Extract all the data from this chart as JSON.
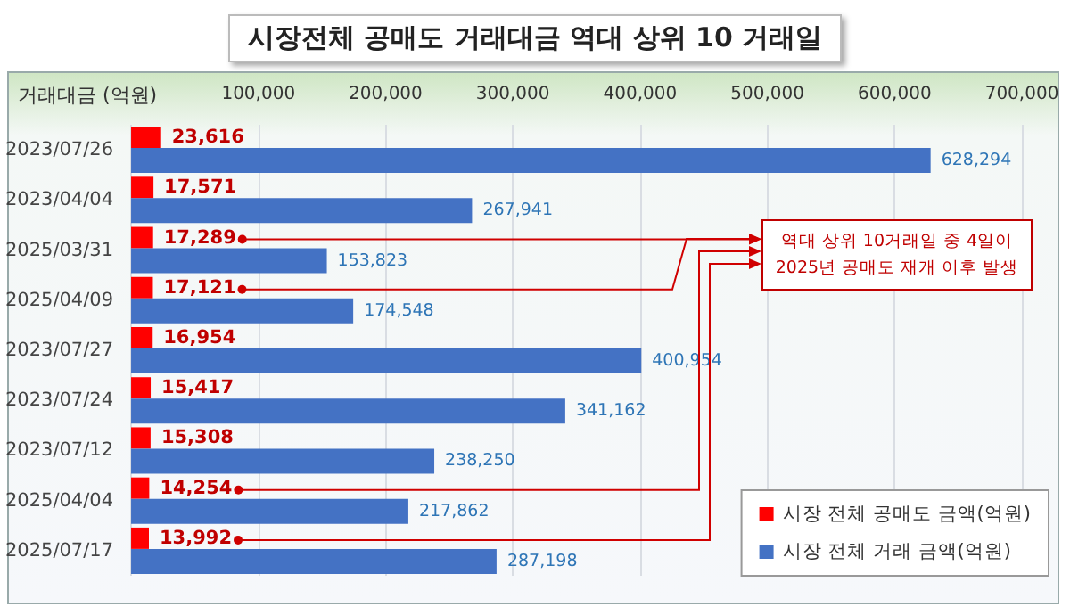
{
  "chart_data": {
    "type": "bar",
    "orientation": "horizontal",
    "title": "시장전체 공매도 거래대금 역대 상위 10 거래일",
    "xlabel": "거래대금 (억원)",
    "categories": [
      "2023/07/26",
      "2023/04/04",
      "2025/03/31",
      "2025/04/09",
      "2023/07/27",
      "2023/07/24",
      "2023/07/12",
      "2025/04/04",
      "2025/07/17"
    ],
    "series": [
      {
        "name": "시장 전체 공매도 금액(억원)",
        "color": "#ff0000",
        "values": [
          23616,
          17571,
          17289,
          17121,
          16954,
          15417,
          15308,
          14254,
          13992
        ],
        "value_labels": [
          "23,616",
          "17,571",
          "17,289",
          "17,121",
          "16,954",
          "15,417",
          "15,308",
          "14,254",
          "13,992"
        ]
      },
      {
        "name": "시장 전체 거래 금액(억원)",
        "color": "#4472c4",
        "values": [
          628294,
          267941,
          153823,
          174548,
          400954,
          341162,
          238250,
          217862,
          287198
        ],
        "value_labels": [
          "628,294",
          "267,941",
          "153,823",
          "174,548",
          "400,954",
          "341,162",
          "238,250",
          "217,862",
          "287,198"
        ]
      }
    ],
    "xlim": [
      0,
      700000
    ],
    "xticks": [
      {
        "value": 0,
        "label": null
      },
      {
        "value": 100000,
        "label": "100,000"
      },
      {
        "value": 200000,
        "label": "200,000"
      },
      {
        "value": 300000,
        "label": "300,000"
      },
      {
        "value": 400000,
        "label": "400,000"
      },
      {
        "value": 500000,
        "label": "500,000"
      },
      {
        "value": 600000,
        "label": "600,000"
      },
      {
        "value": 700000,
        "label": "700,000"
      }
    ],
    "grid": "x",
    "legend": "bottom right",
    "annotations": [
      "역대 상위 10거래일 중 4일이 2025년 공매도 재개 이후 발생"
    ]
  }
}
